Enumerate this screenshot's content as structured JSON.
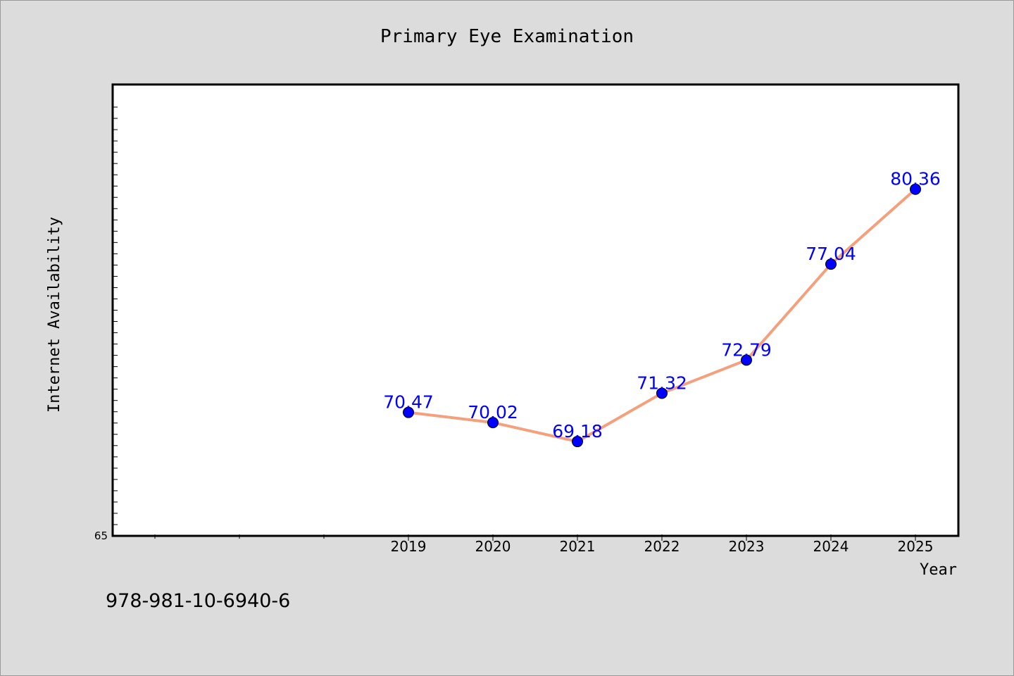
{
  "chart_data": {
    "type": "line",
    "title": "Primary Eye Examination",
    "xlabel": "Year",
    "ylabel": "Internet Availability",
    "x": [
      "2019",
      "2020",
      "2021",
      "2022",
      "2023",
      "2024",
      "2025"
    ],
    "series": [
      {
        "values": [
          70.47,
          70.02,
          69.18,
          71.32,
          72.79,
          77.04,
          80.36
        ],
        "data_labels": [
          "70.47",
          "70.02",
          "69.18",
          "71.32",
          "72.79",
          "77.04",
          "80.36"
        ]
      }
    ],
    "ylim": [
      65,
      85
    ],
    "ytick_labels": [
      "65"
    ],
    "line_color": "#f4a07c",
    "marker_color": "#0000ff",
    "label_color": "#0000ff",
    "grid": false,
    "legend": "none"
  },
  "footer": {
    "isbn": "978-981-10-6940-6"
  }
}
